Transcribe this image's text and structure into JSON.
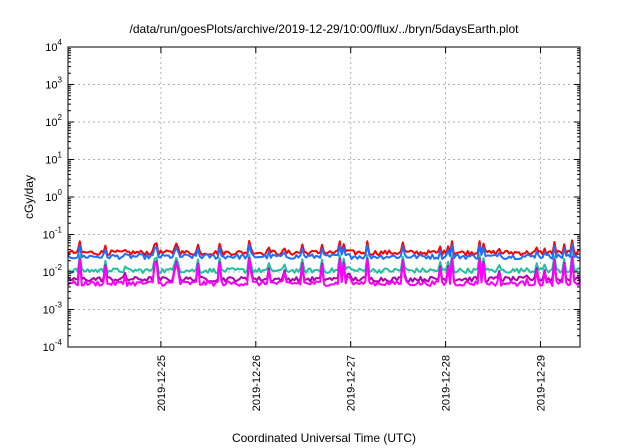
{
  "chart_data": {
    "type": "line",
    "title": "/data/run/goesPlots/archive/2019-12-29/10:00/flux/../bryn/5daysEarth.plot",
    "xlabel": "Coordinated Universal Time (UTC)",
    "ylabel": "cGy/day",
    "y_scale": "log",
    "ylim": [
      0.0001,
      10000
    ],
    "xlim": [
      "2019-12-24T00:30",
      "2019-12-29T10:00"
    ],
    "grid": true,
    "y_ticks": [
      {
        "base": "10",
        "exp": "-4"
      },
      {
        "base": "10",
        "exp": "-3"
      },
      {
        "base": "10",
        "exp": "-2"
      },
      {
        "base": "10",
        "exp": "-1"
      },
      {
        "base": "10",
        "exp": "0"
      },
      {
        "base": "10",
        "exp": "1"
      },
      {
        "base": "10",
        "exp": "2"
      },
      {
        "base": "10",
        "exp": "3"
      },
      {
        "base": "10",
        "exp": "4"
      }
    ],
    "x_ticks": [
      "2019-12-25",
      "2019-12-26",
      "2019-12-27",
      "2019-12-28",
      "2019-12-29"
    ],
    "series": [
      {
        "color": "#ff0000",
        "base": 0.033,
        "spike_max": 0.07
      },
      {
        "color": "#1f6fff",
        "base": 0.026,
        "spike_max": 0.055
      },
      {
        "color": "#20c0a0",
        "base": 0.011,
        "spike_max": 0.03
      },
      {
        "color": "#b000b0",
        "base": 0.0065,
        "spike_max": 0.025
      },
      {
        "color": "#ff00ff",
        "base": 0.005,
        "spike_max": 0.024
      }
    ]
  }
}
